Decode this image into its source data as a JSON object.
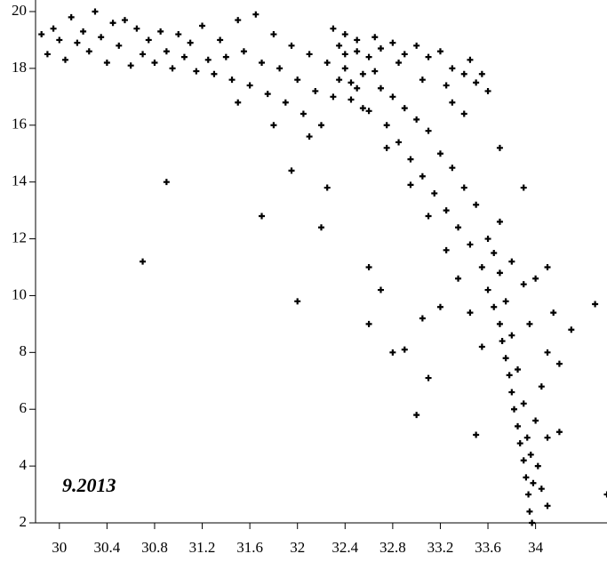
{
  "chart_data": {
    "type": "scatter",
    "annotation": "9.2013",
    "color": "#000000",
    "marker": "plus",
    "xlim": [
      29.8,
      34.6
    ],
    "xticks": [
      30,
      30.4,
      30.8,
      31.2,
      31.6,
      32,
      32.4,
      32.8,
      33.2,
      33.6,
      34
    ],
    "ylim": [
      2,
      20
    ],
    "yticks": [
      2,
      4,
      6,
      8,
      10,
      12,
      14,
      16,
      18,
      20
    ],
    "x": [
      29.85,
      29.9,
      29.95,
      30.0,
      30.05,
      30.1,
      30.15,
      30.2,
      30.25,
      30.3,
      30.35,
      30.4,
      30.45,
      30.5,
      30.55,
      30.6,
      30.65,
      30.7,
      30.75,
      30.8,
      30.85,
      30.9,
      30.95,
      31.0,
      31.05,
      31.1,
      31.15,
      31.2,
      31.25,
      31.3,
      31.35,
      31.4,
      31.45,
      31.5,
      31.55,
      31.6,
      31.65,
      31.7,
      31.75,
      31.8,
      31.85,
      31.9,
      31.95,
      32.0,
      32.05,
      32.1,
      32.15,
      32.2,
      32.25,
      32.3,
      32.3,
      32.35,
      32.4,
      32.4,
      32.45,
      32.5,
      32.5,
      32.55,
      32.6,
      32.6,
      32.65,
      32.7,
      32.7,
      32.75,
      32.8,
      32.8,
      32.85,
      32.9,
      32.9,
      32.95,
      33.0,
      33.0,
      33.05,
      33.1,
      33.1,
      33.15,
      33.2,
      33.2,
      33.25,
      33.3,
      33.3,
      33.35,
      33.4,
      33.4,
      33.45,
      33.5,
      33.5,
      33.55,
      33.6,
      33.6,
      33.6,
      33.65,
      33.65,
      33.7,
      33.7,
      33.72,
      33.75,
      33.75,
      33.78,
      33.8,
      33.8,
      33.82,
      33.85,
      33.85,
      33.87,
      33.9,
      33.9,
      33.92,
      33.93,
      33.94,
      33.95,
      33.96,
      33.97,
      33.98,
      34.0,
      34.02,
      34.05,
      34.05,
      34.1,
      34.1,
      33.55,
      33.45,
      33.35,
      33.25,
      33.1,
      32.95,
      32.75,
      32.55,
      32.45,
      33.4,
      33.3,
      33.7,
      33.8,
      33.9,
      33.95,
      34.0,
      34.1,
      34.15,
      34.2,
      34.2,
      34.5,
      34.6,
      34.3,
      34.1,
      33.7,
      33.9,
      32.7,
      32.6,
      32.8,
      32.9,
      32.6,
      33.0,
      33.1,
      33.5,
      33.2,
      33.05,
      30.7,
      30.9,
      31.7,
      32.0,
      32.2,
      31.95,
      32.1,
      31.8,
      31.5,
      32.25,
      32.4,
      32.5,
      32.65,
      32.85,
      33.05,
      33.25,
      33.45,
      33.55,
      32.35
    ],
    "values": [
      19.2,
      18.5,
      19.4,
      19.0,
      18.3,
      19.8,
      18.9,
      19.3,
      18.6,
      20.0,
      19.1,
      18.2,
      19.6,
      18.8,
      19.7,
      18.1,
      19.4,
      18.5,
      19.0,
      18.2,
      19.3,
      18.6,
      18.0,
      19.2,
      18.4,
      18.9,
      17.9,
      19.5,
      18.3,
      17.8,
      19.0,
      18.4,
      17.6,
      19.7,
      18.6,
      17.4,
      19.9,
      18.2,
      17.1,
      19.2,
      18.0,
      16.8,
      18.8,
      17.6,
      16.4,
      18.5,
      17.2,
      16.0,
      18.2,
      17.0,
      19.4,
      18.8,
      18.0,
      19.2,
      17.5,
      18.6,
      19.0,
      17.8,
      18.4,
      16.5,
      19.1,
      17.3,
      18.7,
      16.0,
      18.9,
      17.0,
      15.4,
      18.5,
      16.6,
      14.8,
      18.8,
      16.2,
      14.2,
      18.4,
      15.8,
      13.6,
      18.6,
      15.0,
      13.0,
      18.0,
      14.5,
      12.4,
      17.8,
      13.8,
      11.8,
      17.5,
      13.2,
      11.0,
      17.2,
      12.0,
      10.2,
      11.5,
      9.6,
      10.8,
      9.0,
      8.4,
      9.8,
      7.8,
      7.2,
      8.6,
      6.6,
      6.0,
      7.4,
      5.4,
      4.8,
      6.2,
      4.2,
      3.6,
      5.0,
      3.0,
      2.4,
      4.4,
      2.0,
      3.4,
      5.6,
      4.0,
      6.8,
      3.2,
      5.0,
      8.0,
      8.2,
      9.4,
      10.6,
      11.6,
      12.8,
      13.9,
      15.2,
      16.6,
      16.9,
      16.4,
      16.8,
      12.6,
      11.2,
      10.4,
      9.0,
      10.6,
      11.0,
      9.4,
      7.6,
      5.2,
      9.7,
      3.0,
      8.8,
      2.6,
      15.2,
      13.8,
      10.2,
      11.0,
      8.0,
      8.1,
      9.0,
      5.8,
      7.1,
      5.1,
      9.6,
      9.2,
      11.2,
      14.0,
      12.8,
      9.8,
      12.4,
      14.4,
      15.6,
      16.0,
      16.8,
      13.8,
      18.5,
      17.3,
      17.9,
      18.2,
      17.6,
      17.4,
      18.3,
      17.8,
      17.6
    ]
  }
}
